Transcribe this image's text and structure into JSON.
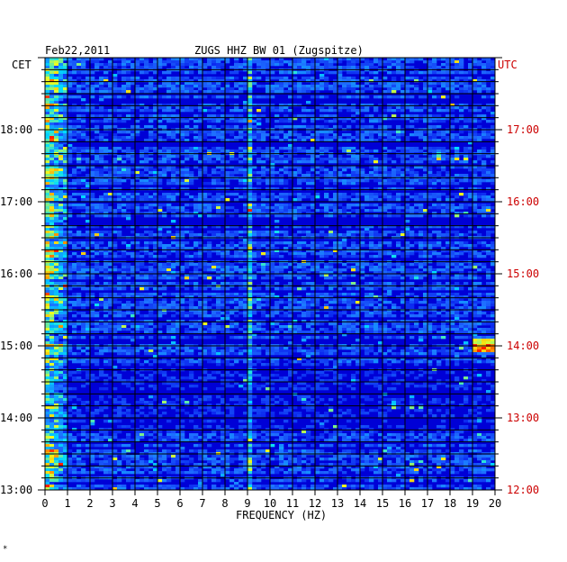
{
  "header": {
    "date": "Feb22,2011",
    "station": "ZUGS HHZ BW 01 (Zugspitze)"
  },
  "axis": {
    "left_zone": "CET",
    "right_zone": "UTC",
    "xlabel": "FREQUENCY (HZ)"
  },
  "footer_mark": "*",
  "colors": {
    "background_low": "#00009c",
    "mid": "#1e6cff",
    "high": "#ffff00",
    "peak": "#ff2000",
    "right_axis_text": "#cc0000"
  },
  "chart_data": {
    "type": "heatmap",
    "title": "ZUGS HHZ BW 01 (Zugspitze)",
    "date": "Feb22,2011",
    "xlabel": "FREQUENCY (HZ)",
    "xlim": [
      0,
      20
    ],
    "x_ticks": [
      "0",
      "1",
      "2",
      "3",
      "4",
      "5",
      "6",
      "7",
      "8",
      "9",
      "10",
      "11",
      "12",
      "13",
      "14",
      "15",
      "16",
      "17",
      "18",
      "19",
      "20"
    ],
    "y_left_ticks": [
      "18:00",
      "17:00",
      "16:00",
      "15:00",
      "14:00",
      "13:00"
    ],
    "y_right_ticks": [
      "17:00",
      "16:00",
      "15:00",
      "14:00",
      "13:00",
      "12:00"
    ],
    "y_left_label": "CET",
    "y_right_label": "UTC",
    "time_range_cet": [
      "13:00",
      "19:00"
    ],
    "colormap": "jet",
    "features": [
      {
        "frequency_hz": [
          0,
          1
        ],
        "description": "strong low-frequency energy throughout"
      },
      {
        "frequency_hz": [
          9,
          9.2
        ],
        "description": "persistent narrow band"
      },
      {
        "frequency_hz": [
          19,
          20
        ],
        "time_cet": "15:00",
        "description": "high-energy burst"
      }
    ]
  }
}
